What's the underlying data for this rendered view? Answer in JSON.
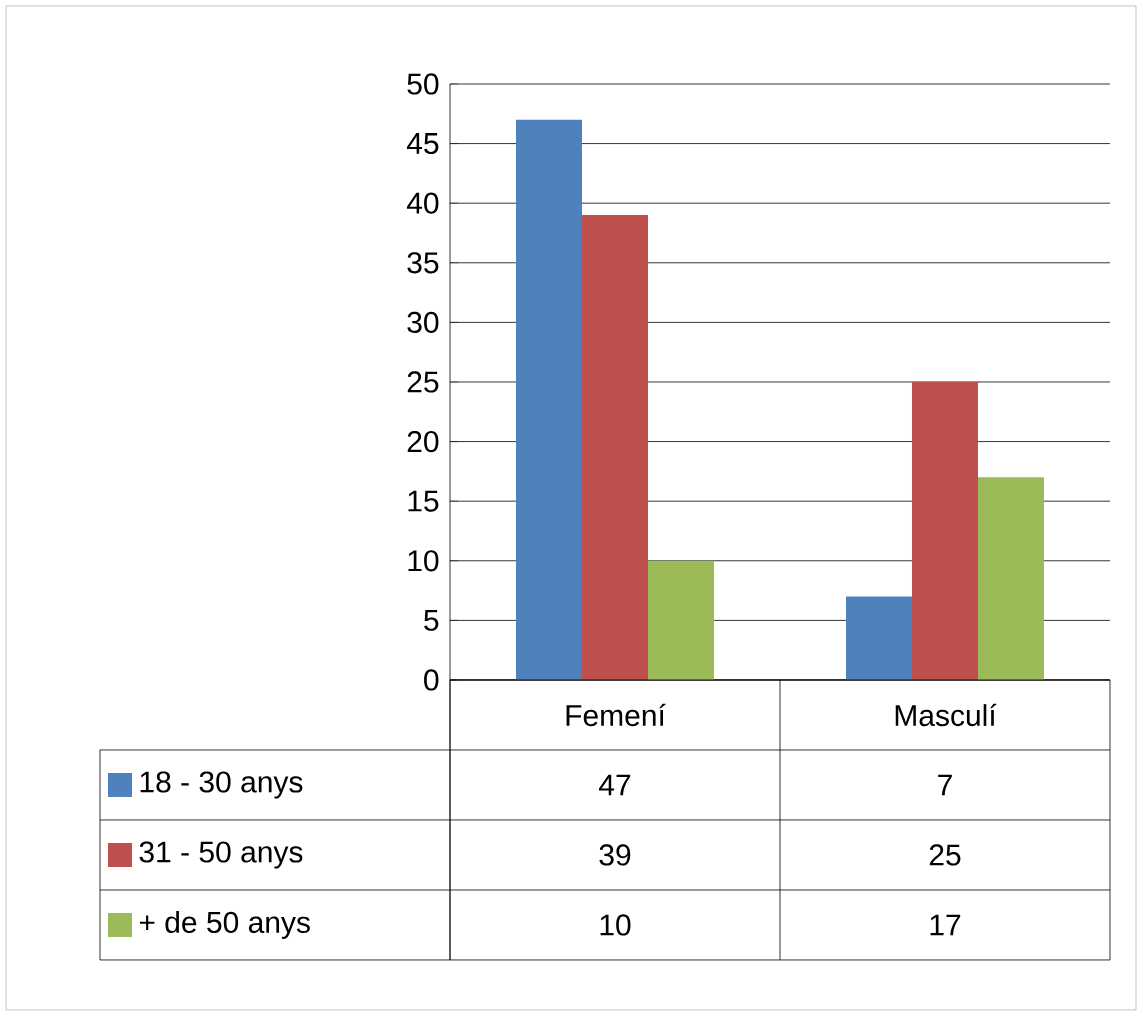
{
  "chart_data": {
    "type": "bar",
    "categories": [
      "Femení",
      "Masculí"
    ],
    "series": [
      {
        "name": "18 - 30 anys",
        "color": "#4f81bd",
        "values": [
          47,
          7
        ]
      },
      {
        "name": "31 - 50 anys",
        "color": "#c0504d",
        "values": [
          39,
          25
        ]
      },
      {
        "name": "+ de 50 anys",
        "color": "#9bbb59",
        "values": [
          10,
          17
        ]
      }
    ],
    "ylim": [
      0,
      50
    ],
    "yticks": [
      0,
      5,
      10,
      15,
      20,
      25,
      30,
      35,
      40,
      45,
      50
    ],
    "grid": "y",
    "legend": "bottom",
    "data_labels": true
  }
}
